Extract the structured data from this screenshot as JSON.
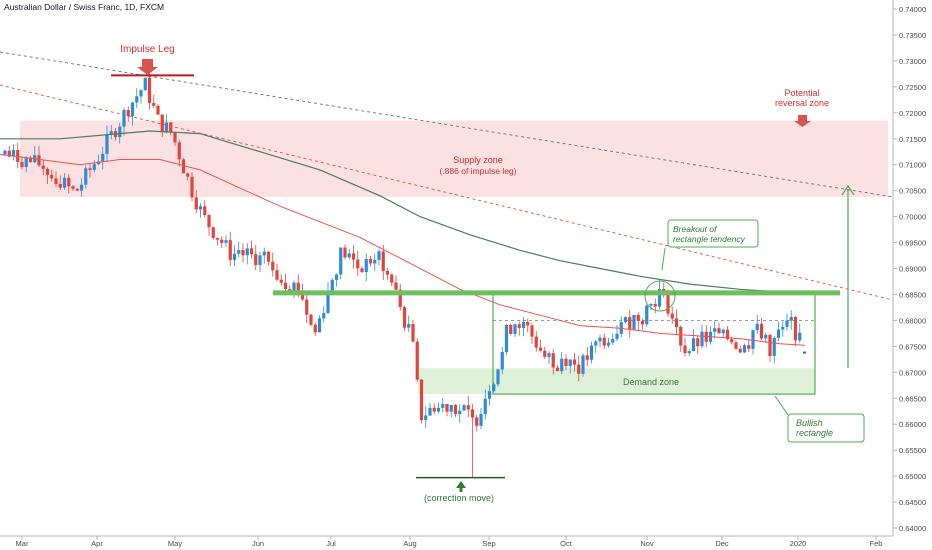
{
  "chart_data": {
    "type": "candlestick",
    "title": "Australian Dollar / Swiss Franc, 1D, FXCM",
    "x_tick_labels": [
      "Mar",
      "Apr",
      "May",
      "Jun",
      "Jul",
      "Aug",
      "Sep",
      "Oct",
      "Nov",
      "Dec",
      "2020",
      "Feb"
    ],
    "y_tick_labels": [
      "0.74000",
      "0.73500",
      "0.73000",
      "0.72500",
      "0.72000",
      "0.71500",
      "0.71000",
      "0.70500",
      "0.70000",
      "0.69500",
      "0.69000",
      "0.68500",
      "0.68000",
      "0.67500",
      "0.67000",
      "0.66500",
      "0.66000",
      "0.65500",
      "0.65000",
      "0.64500",
      "0.64000"
    ],
    "ylim": [
      0.6395,
      0.7405
    ],
    "grid": false,
    "colors": {
      "bull": "#2e8bd9",
      "bear": "#e0443c",
      "supply_zone": "#fbe1e1",
      "demand_zone": "#dff0d8",
      "green": "#4caf50",
      "annotation_red": "#d32f2f",
      "ma_long": "#4d7a63",
      "ma_short": "#ef5350",
      "trend_red": "#e84a4a",
      "trend_gray": "#707070"
    },
    "annotations": {
      "impulse_leg": "Impulse Leg",
      "supply_zone": "Supply zone",
      "supply_zone_note": "(.886 of impulse leg)",
      "potential_reversal_line1": "Potential",
      "potential_reversal_line2": "reversal zone",
      "breakout_line1": "Breakout of",
      "breakout_line2": "rectangle tendency",
      "demand_zone": "Demand zone",
      "correction_move": "(correction move)",
      "bullish_rectangle_line1": "Bullish",
      "bullish_rectangle_line2": "rectangle"
    },
    "zones": {
      "supply": [
        0.7038,
        0.7185
      ],
      "demand": [
        0.6658,
        0.6708
      ],
      "rectangle": [
        0.6658,
        0.685
      ],
      "breakout_level": 0.6853,
      "rectangle_midline": 0.68,
      "impulse_high": 0.7272,
      "correction_low": 0.6497
    },
    "last_price": 0.6738
  }
}
